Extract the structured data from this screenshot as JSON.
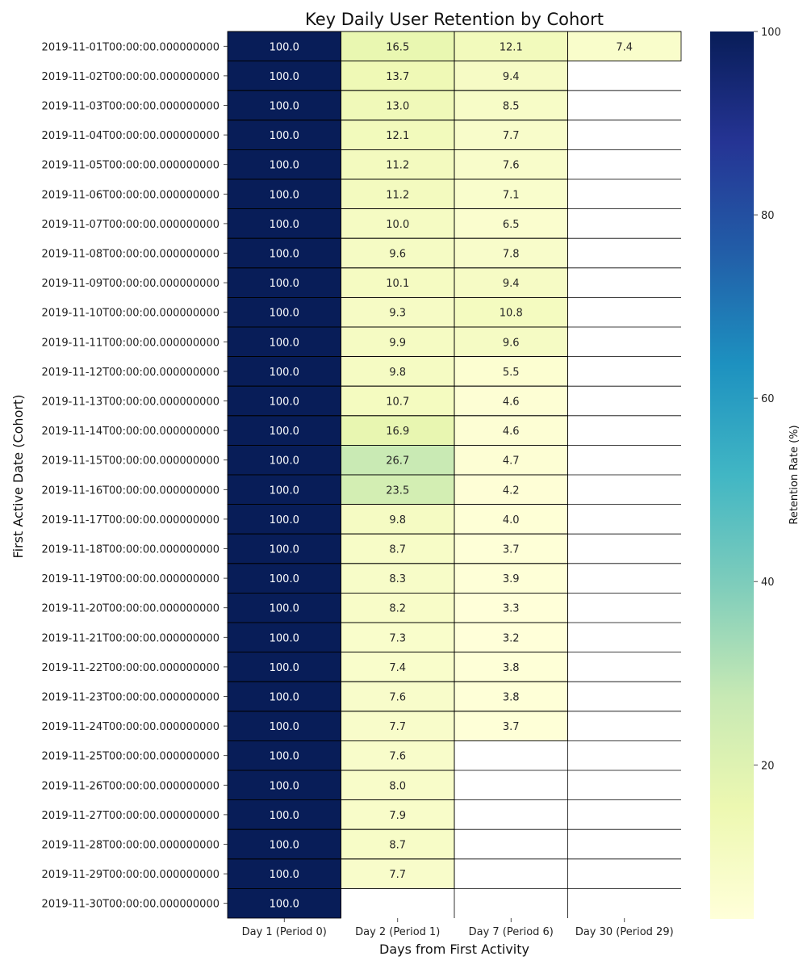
{
  "chart_data": {
    "type": "heatmap",
    "title": "Key Daily User Retention by Cohort",
    "xlabel": "Days from First Activity",
    "ylabel": "First Active Date (Cohort)",
    "colorbar_label": "Retention Rate (%)",
    "colorbar_ticks": [
      20,
      40,
      60,
      80,
      100
    ],
    "colorbar_range": [
      3.2,
      100
    ],
    "colormap": "YlGnBu",
    "columns": [
      "Day 1 (Period 0)",
      "Day 2 (Period 1)",
      "Day 7 (Period 6)",
      "Day 30 (Period 29)"
    ],
    "rows": [
      "2019-11-01T00:00:00.000000000",
      "2019-11-02T00:00:00.000000000",
      "2019-11-03T00:00:00.000000000",
      "2019-11-04T00:00:00.000000000",
      "2019-11-05T00:00:00.000000000",
      "2019-11-06T00:00:00.000000000",
      "2019-11-07T00:00:00.000000000",
      "2019-11-08T00:00:00.000000000",
      "2019-11-09T00:00:00.000000000",
      "2019-11-10T00:00:00.000000000",
      "2019-11-11T00:00:00.000000000",
      "2019-11-12T00:00:00.000000000",
      "2019-11-13T00:00:00.000000000",
      "2019-11-14T00:00:00.000000000",
      "2019-11-15T00:00:00.000000000",
      "2019-11-16T00:00:00.000000000",
      "2019-11-17T00:00:00.000000000",
      "2019-11-18T00:00:00.000000000",
      "2019-11-19T00:00:00.000000000",
      "2019-11-20T00:00:00.000000000",
      "2019-11-21T00:00:00.000000000",
      "2019-11-22T00:00:00.000000000",
      "2019-11-23T00:00:00.000000000",
      "2019-11-24T00:00:00.000000000",
      "2019-11-25T00:00:00.000000000",
      "2019-11-26T00:00:00.000000000",
      "2019-11-27T00:00:00.000000000",
      "2019-11-28T00:00:00.000000000",
      "2019-11-29T00:00:00.000000000",
      "2019-11-30T00:00:00.000000000"
    ],
    "values": [
      [
        100.0,
        16.5,
        12.1,
        7.4
      ],
      [
        100.0,
        13.7,
        9.4,
        null
      ],
      [
        100.0,
        13.0,
        8.5,
        null
      ],
      [
        100.0,
        12.1,
        7.7,
        null
      ],
      [
        100.0,
        11.2,
        7.6,
        null
      ],
      [
        100.0,
        11.2,
        7.1,
        null
      ],
      [
        100.0,
        10.0,
        6.5,
        null
      ],
      [
        100.0,
        9.6,
        7.8,
        null
      ],
      [
        100.0,
        10.1,
        9.4,
        null
      ],
      [
        100.0,
        9.3,
        10.8,
        null
      ],
      [
        100.0,
        9.9,
        9.6,
        null
      ],
      [
        100.0,
        9.8,
        5.5,
        null
      ],
      [
        100.0,
        10.7,
        4.6,
        null
      ],
      [
        100.0,
        16.9,
        4.6,
        null
      ],
      [
        100.0,
        26.7,
        4.7,
        null
      ],
      [
        100.0,
        23.5,
        4.2,
        null
      ],
      [
        100.0,
        9.8,
        4.0,
        null
      ],
      [
        100.0,
        8.7,
        3.7,
        null
      ],
      [
        100.0,
        8.3,
        3.9,
        null
      ],
      [
        100.0,
        8.2,
        3.3,
        null
      ],
      [
        100.0,
        7.3,
        3.2,
        null
      ],
      [
        100.0,
        7.4,
        3.8,
        null
      ],
      [
        100.0,
        7.6,
        3.8,
        null
      ],
      [
        100.0,
        7.7,
        3.7,
        null
      ],
      [
        100.0,
        7.6,
        null,
        null
      ],
      [
        100.0,
        8.0,
        null,
        null
      ],
      [
        100.0,
        7.9,
        null,
        null
      ],
      [
        100.0,
        8.7,
        null,
        null
      ],
      [
        100.0,
        7.7,
        null,
        null
      ],
      [
        100.0,
        null,
        null,
        null
      ]
    ],
    "annotation_format": "0.0"
  }
}
